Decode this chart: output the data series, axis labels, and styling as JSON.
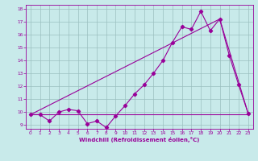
{
  "xlabel": "Windchill (Refroidissement éolien,°C)",
  "ylabel": "",
  "bg_color": "#c8eaea",
  "line_color": "#990099",
  "xlim": [
    -0.5,
    23.5
  ],
  "ylim": [
    8.7,
    18.3
  ],
  "xticks": [
    0,
    1,
    2,
    3,
    4,
    5,
    6,
    7,
    8,
    9,
    10,
    11,
    12,
    13,
    14,
    15,
    16,
    17,
    18,
    19,
    20,
    21,
    22,
    23
  ],
  "yticks": [
    9,
    10,
    11,
    12,
    13,
    14,
    15,
    16,
    17,
    18
  ],
  "line1_x": [
    0,
    1,
    2,
    3,
    4,
    5,
    6,
    7,
    8,
    9,
    10,
    11,
    12,
    13,
    14,
    15,
    16,
    17,
    18,
    19,
    20,
    21,
    22,
    23
  ],
  "line1_y": [
    9.8,
    9.8,
    9.3,
    10.0,
    10.2,
    10.1,
    9.1,
    9.3,
    8.8,
    9.7,
    10.5,
    11.4,
    12.1,
    13.0,
    14.0,
    15.4,
    16.6,
    16.4,
    17.8,
    16.3,
    17.2,
    14.4,
    12.1,
    9.9
  ],
  "line2_x": [
    0,
    23
  ],
  "line2_y": [
    9.8,
    9.8
  ],
  "line3_x": [
    0,
    20,
    23
  ],
  "line3_y": [
    9.8,
    17.2,
    9.9
  ],
  "grid_color": "#9bbfbf",
  "marker": "D",
  "markersize": 2.2,
  "linewidth": 0.8
}
